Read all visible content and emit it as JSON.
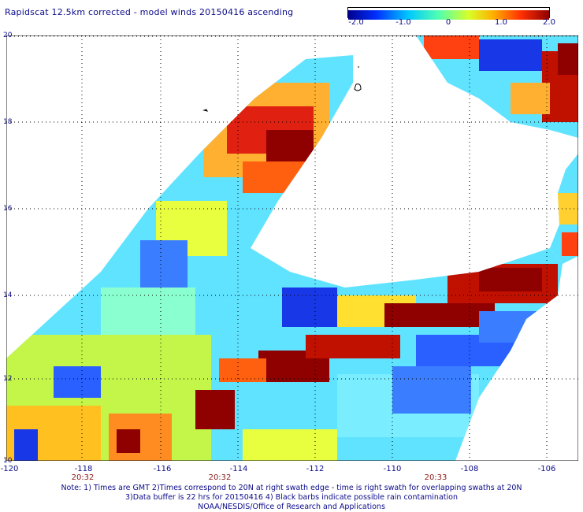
{
  "title": "Rapidscat 12.5km corrected - model winds 20150416 ascending",
  "colorbar": {
    "labels": [
      "-2.0",
      "-1.0",
      "0",
      "1.0",
      "2.0"
    ],
    "min": -2.0,
    "max": 2.0,
    "colors": [
      "#00008f",
      "#0030ff",
      "#00c8ff",
      "#50ffb0",
      "#d8ff28",
      "#ffb000",
      "#ff3000",
      "#8f0000"
    ]
  },
  "lat_labels": [
    "20",
    "18",
    "16",
    "14",
    "12",
    "10"
  ],
  "lon_labels": [
    "-120",
    "-118",
    "-116",
    "-114",
    "-112",
    "-110",
    "-108",
    "-106"
  ],
  "time_labels": [
    "20:32",
    "20:32",
    "20:33"
  ],
  "notes": [
    "Note: 1) Times are GMT 2)Times correspond to 20N at right swath edge - time is right swath for overlapping swaths at 20N",
    "3)Data buffer is 22 hrs for 20150416 4) Black barbs indicate possible rain contamination",
    "NOAA/NESDIS/Office of Research and Applications"
  ]
}
